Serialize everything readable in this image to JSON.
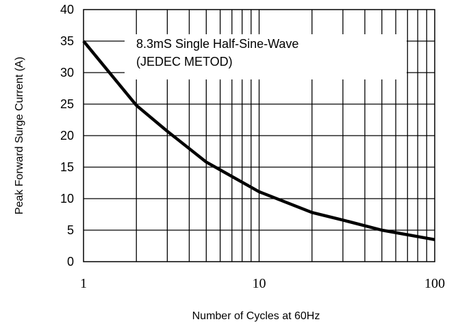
{
  "chart_data": {
    "type": "line",
    "title": "",
    "xlabel": "Number of Cycles at 60Hz",
    "ylabel": "Peak Forward Surge Current (A)",
    "xscale": "log",
    "xlim": [
      1,
      100
    ],
    "ylim": [
      0,
      40
    ],
    "xticks": [
      1,
      10,
      100
    ],
    "xtick_labels": [
      "1",
      "10",
      "100"
    ],
    "yticks": [
      0,
      5,
      10,
      15,
      20,
      25,
      30,
      35,
      40
    ],
    "ytick_labels": [
      "0",
      "5",
      "10",
      "15",
      "20",
      "25",
      "30",
      "35",
      "40"
    ],
    "grid": true,
    "annotation": [
      "8.3mS Single Half-Sine-Wave",
      "(JEDEC METOD)"
    ],
    "series": [
      {
        "x": [
          1,
          2,
          3,
          5,
          10,
          20,
          30,
          50,
          100
        ],
        "y": [
          35,
          24.8,
          20.7,
          15.8,
          11.1,
          7.8,
          6.6,
          5.0,
          3.5
        ]
      }
    ]
  }
}
